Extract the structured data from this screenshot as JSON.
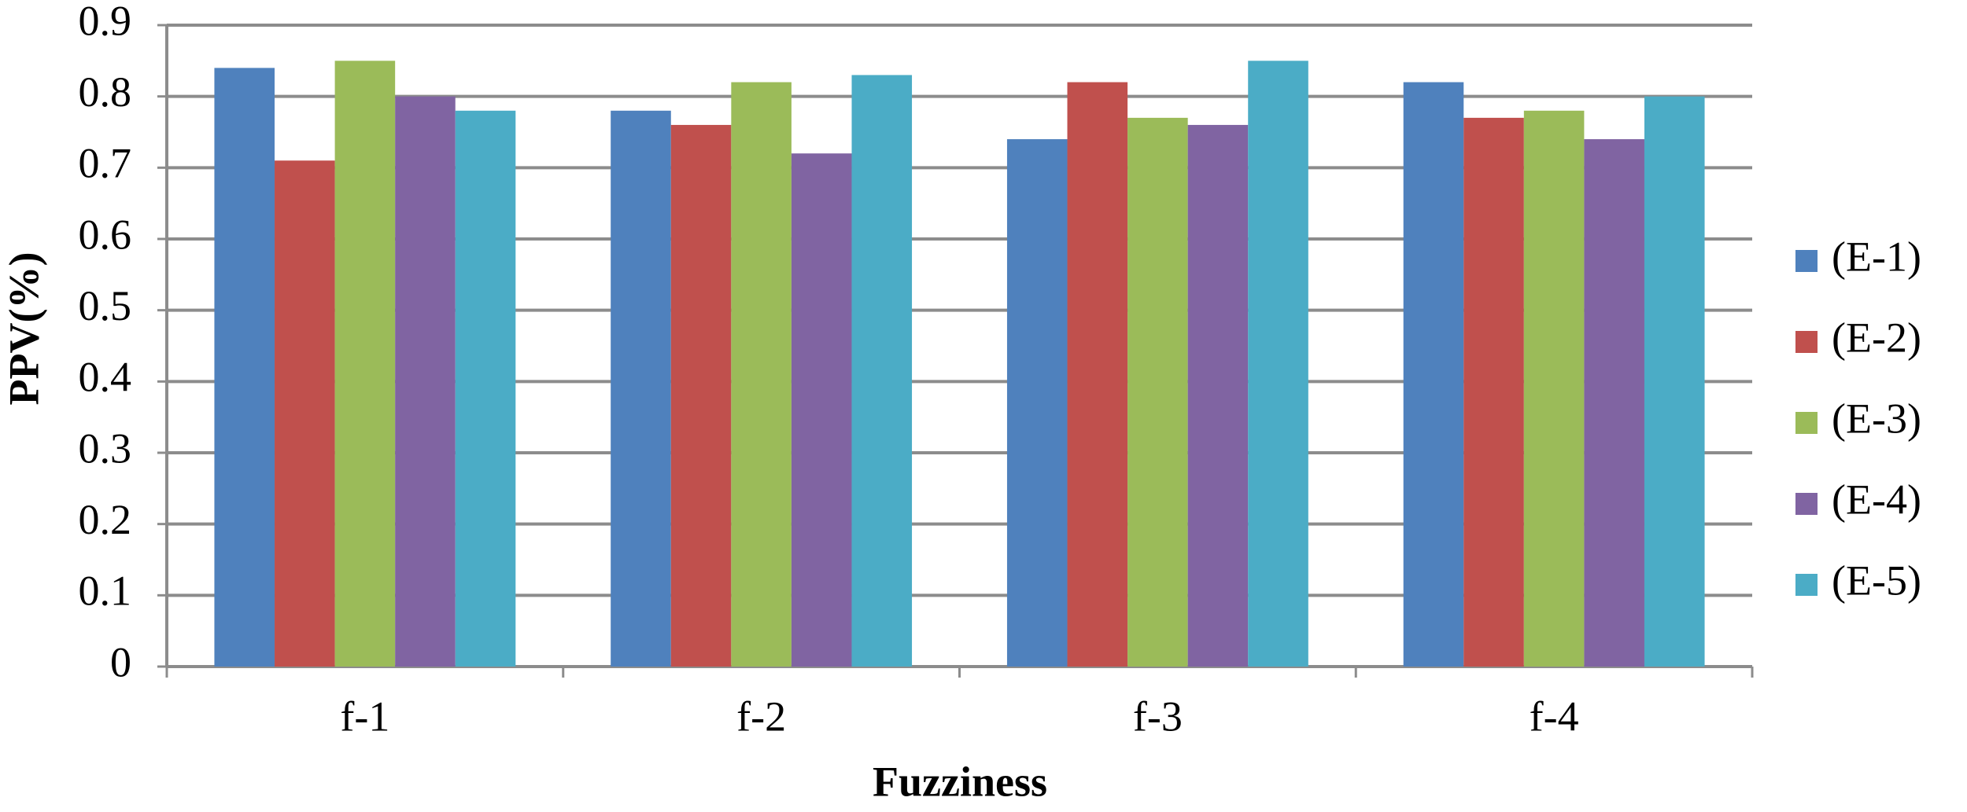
{
  "chart_data": {
    "type": "bar",
    "x_label": "Fuzziness",
    "y_label": "PPV(%)",
    "categories": [
      "f-1",
      "f-2",
      "f-3",
      "f-4"
    ],
    "series": [
      {
        "name": "(E-1)",
        "color": "#4f81bd",
        "values": [
          0.84,
          0.78,
          0.74,
          0.82
        ]
      },
      {
        "name": "(E-2)",
        "color": "#c0504d",
        "values": [
          0.71,
          0.76,
          0.82,
          0.77
        ]
      },
      {
        "name": "(E-3)",
        "color": "#9bbb59",
        "values": [
          0.85,
          0.82,
          0.77,
          0.78
        ]
      },
      {
        "name": "(E-4)",
        "color": "#8064a2",
        "values": [
          0.8,
          0.72,
          0.76,
          0.74
        ]
      },
      {
        "name": "(E-5)",
        "color": "#4bacc6",
        "values": [
          0.78,
          0.83,
          0.85,
          0.8
        ]
      }
    ],
    "ylim": [
      0,
      0.9
    ],
    "yticks": [
      0,
      0.1,
      0.2,
      0.3,
      0.4,
      0.5,
      0.6,
      0.7,
      0.8,
      0.9
    ],
    "grid": true,
    "legend": "right"
  }
}
